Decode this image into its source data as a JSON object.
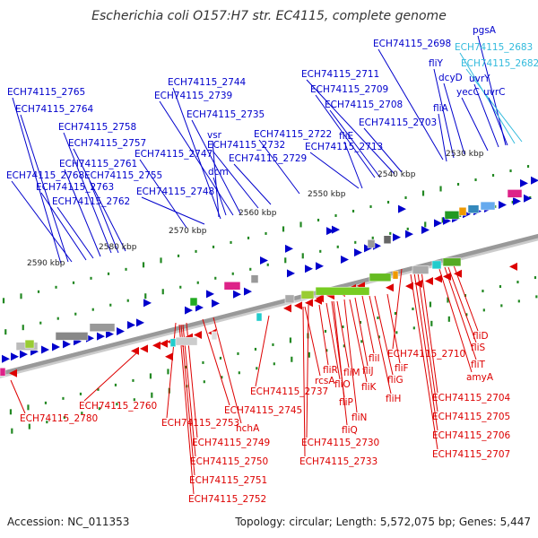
{
  "title": "Escherichia coli O157:H7 str. EC4115, complete genome",
  "footer": {
    "accession": "Accession: NC_011353",
    "summary": "Topology: circular; Length: 5,572,075 bp; Genes: 5,447"
  },
  "colors": {
    "forward": "#0000cc",
    "reverse": "#dd0000",
    "cyan_label": "#33bbdd",
    "axis": "#999999",
    "tick": "#228822"
  },
  "scale_ticks": [
    "2530 kbp",
    "2540 kbp",
    "2550 kbp",
    "2560 kbp",
    "2570 kbp",
    "2580 kbp",
    "2590 kbp"
  ],
  "top_labels": [
    "ECH74115_2698",
    "pgsA",
    "ECH74115_2683",
    "ECH74115_2682",
    "fliY",
    "dcyD",
    "uvrY",
    "yecC",
    "uvrC",
    "fliA",
    "ECH74115_2711",
    "ECH74115_2709",
    "ECH74115_2708",
    "ECH74115_2703",
    "fliE",
    "ECH74115_2722",
    "ECH74115_2713",
    "ECH74115_2744",
    "ECH74115_2739",
    "ECH74115_2735",
    "vsr",
    "ECH74115_2732",
    "dcm",
    "ECH74115_2747",
    "ECH74115_2729",
    "ECH74115_2748",
    "ECH74115_2765",
    "ECH74115_2764",
    "ECH74115_2758",
    "ECH74115_2757",
    "ECH74115_2761",
    "ECH74115_2768",
    "ECH74115_2755",
    "ECH74115_2763",
    "ECH74115_2762"
  ],
  "bottom_labels": [
    "ECH74115_2780",
    "ECH74115_2760",
    "ECH74115_2753",
    "ECH74115_2745",
    "hchA",
    "ECH74115_2749",
    "ECH74115_2750",
    "ECH74115_2751",
    "ECH74115_2752",
    "ECH74115_2737",
    "fliR",
    "rcsA",
    "fliO",
    "fliP",
    "fliN",
    "fliQ",
    "fliM",
    "fliJ",
    "fliK",
    "fliI",
    "fliF",
    "fliG",
    "fliH",
    "ECH74115_2730",
    "ECH74115_2733",
    "ECH74115_2710",
    "fliD",
    "fliS",
    "fliT",
    "amyA",
    "ECH74115_2704",
    "ECH74115_2705",
    "ECH74115_2706",
    "ECH74115_2707"
  ]
}
